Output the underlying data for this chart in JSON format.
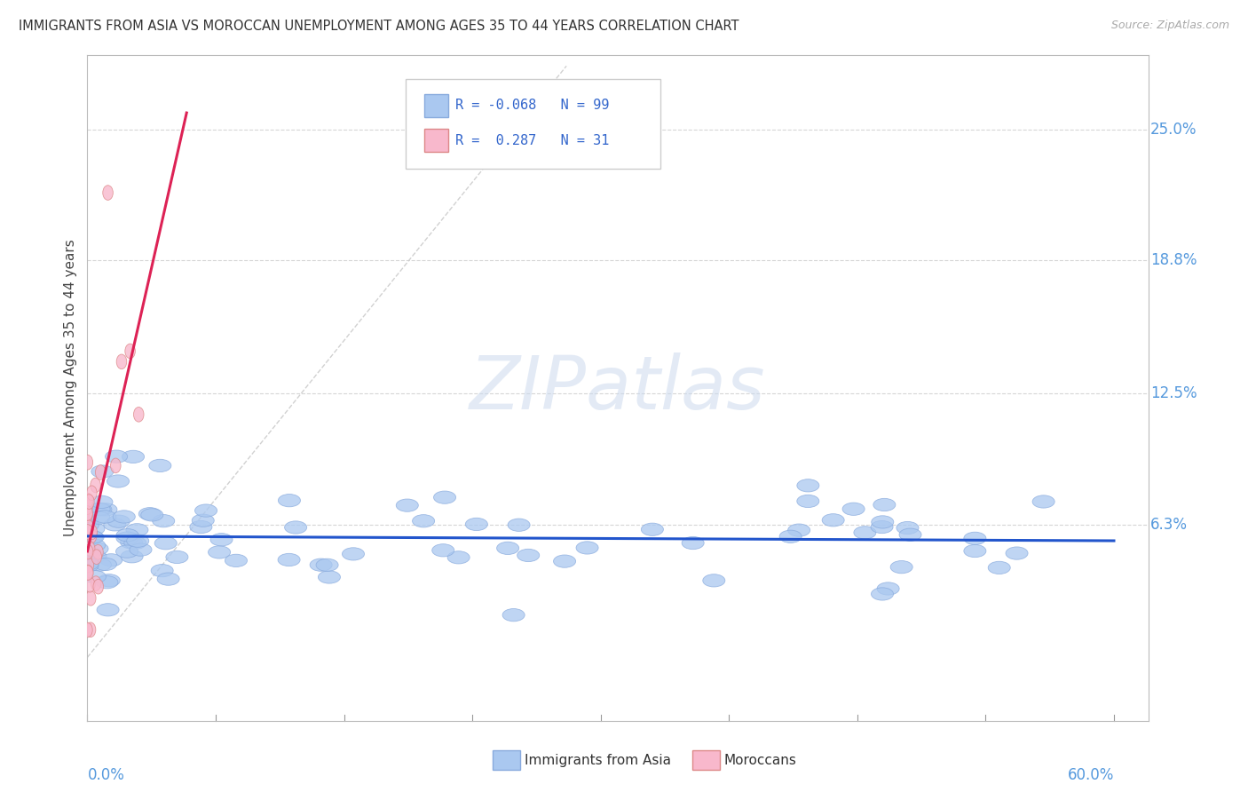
{
  "title": "IMMIGRANTS FROM ASIA VS MOROCCAN UNEMPLOYMENT AMONG AGES 35 TO 44 YEARS CORRELATION CHART",
  "source": "Source: ZipAtlas.com",
  "ylabel": "Unemployment Among Ages 35 to 44 years",
  "ytick_labels": [
    "6.3%",
    "12.5%",
    "18.8%",
    "25.0%"
  ],
  "ytick_values": [
    0.063,
    0.125,
    0.188,
    0.25
  ],
  "xlim": [
    0.0,
    0.62
  ],
  "ylim": [
    -0.03,
    0.285
  ],
  "blue_R": -0.068,
  "blue_N": 99,
  "pink_R": 0.287,
  "pink_N": 31,
  "blue_color": "#aac8f0",
  "blue_edge": "#88aadd",
  "blue_trend": "#2255cc",
  "pink_color": "#f8b8cc",
  "pink_edge": "#dd8888",
  "pink_trend": "#dd2255",
  "diag_color": "#cccccc",
  "watermark_color": "#ccdaee",
  "watermark": "ZIPatlas",
  "grid_color": "#cccccc",
  "axis_label_color": "#5599dd",
  "title_color": "#333333",
  "background_color": "#ffffff",
  "legend_R_color": "#3366cc",
  "legend_N_color": "#3366cc"
}
